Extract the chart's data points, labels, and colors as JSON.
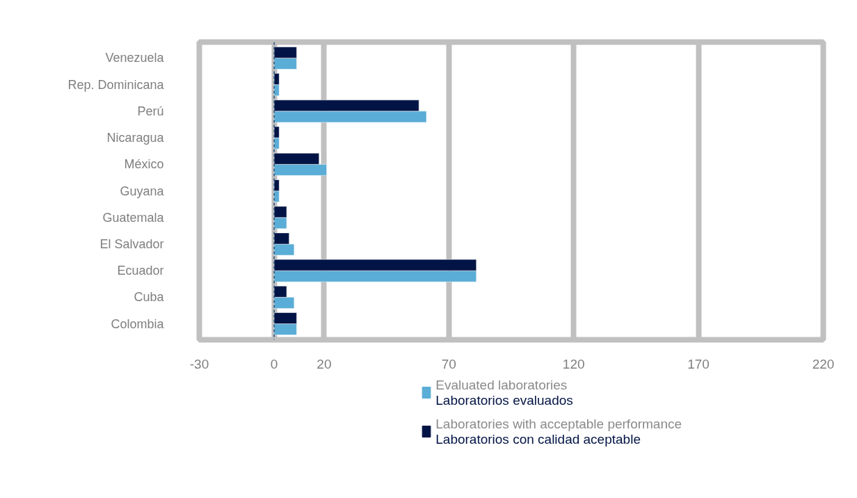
{
  "chart_data": {
    "type": "bar",
    "orientation": "horizontal",
    "categories": [
      "Venezuela",
      "Rep. Dominicana",
      "Perú",
      "Nicaragua",
      "México",
      "Guyana",
      "Guatemala",
      "El Salvador",
      "Ecuador",
      "Cuba",
      "Colombia"
    ],
    "series": [
      {
        "name": "Evaluated laboratories\nLaboratorios evaluados",
        "color": "#5aadd6",
        "values": [
          9,
          2,
          61,
          2,
          21,
          2,
          5,
          8,
          81,
          8,
          9
        ]
      },
      {
        "name": "Laboratories with acceptable performance\nLaboratorios con calidad aceptable",
        "color": "#021445",
        "values": [
          9,
          2,
          58,
          2,
          18,
          2,
          5,
          6,
          81,
          5,
          9
        ]
      }
    ],
    "xlim": [
      -30,
      220
    ],
    "xticks": [
      -30,
      0,
      20,
      70,
      120,
      170,
      220
    ],
    "grid": "x",
    "legend": "bottom",
    "ref_lines": [
      {
        "axis": "x",
        "value": 0,
        "color": "#1f4e79",
        "line_style": "dashed"
      }
    ]
  }
}
